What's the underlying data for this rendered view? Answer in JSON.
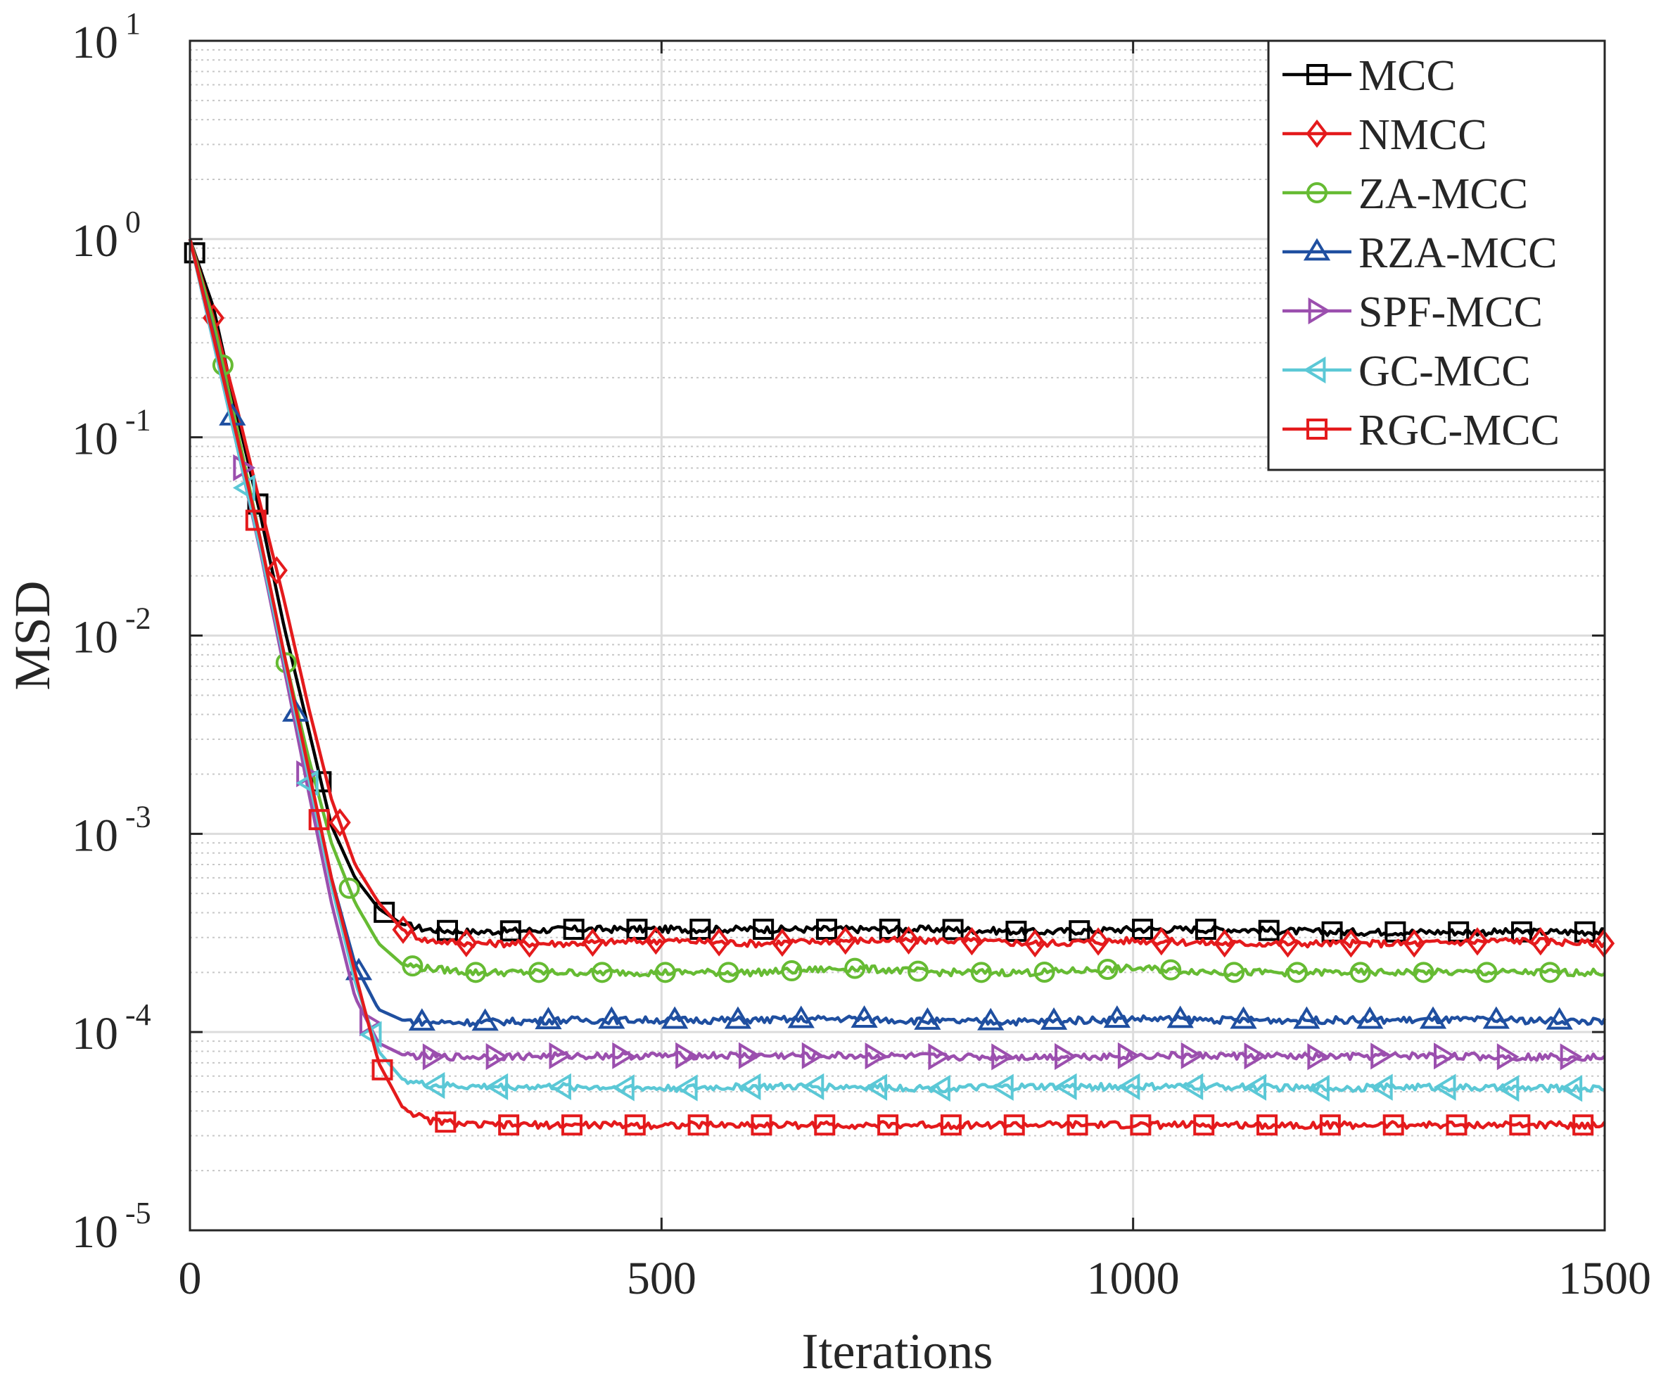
{
  "chart_data": {
    "type": "line",
    "title": "",
    "xlabel": "Iterations",
    "ylabel": "MSD",
    "xscale": "linear",
    "yscale": "log",
    "xlim": [
      0,
      1500
    ],
    "ylim": [
      1e-05,
      10
    ],
    "grid": true,
    "legend_position": "top-right",
    "x_ticks": [
      {
        "value": 0,
        "label": "0"
      },
      {
        "value": 500,
        "label": "500"
      },
      {
        "value": 1000,
        "label": "1000"
      },
      {
        "value": 1500,
        "label": "1500"
      }
    ],
    "y_ticks": [
      {
        "value": 1e-05,
        "base": "10",
        "exp": "-5"
      },
      {
        "value": 0.0001,
        "base": "10",
        "exp": "-4"
      },
      {
        "value": 0.001,
        "base": "10",
        "exp": "-3"
      },
      {
        "value": 0.01,
        "base": "10",
        "exp": "-2"
      },
      {
        "value": 0.1,
        "base": "10",
        "exp": "-1"
      },
      {
        "value": 1,
        "base": "10",
        "exp": "0"
      },
      {
        "value": 10,
        "base": "10",
        "exp": "1"
      }
    ],
    "series": [
      {
        "name": "MCC",
        "color": "#000000",
        "marker": "square",
        "marker_offset": 5,
        "x": [
          0,
          25,
          50,
          75,
          100,
          125,
          150,
          175,
          200,
          225,
          250,
          300,
          400,
          500,
          600,
          700,
          800,
          900,
          1000,
          1100,
          1200,
          1300,
          1400,
          1500
        ],
        "y": [
          1.0,
          0.45,
          0.13,
          0.04,
          0.011,
          0.0035,
          0.0011,
          0.0006,
          0.00042,
          0.00035,
          0.00033,
          0.00032,
          0.00033,
          0.00033,
          0.00033,
          0.00033,
          0.00033,
          0.00032,
          0.00033,
          0.00033,
          0.00032,
          0.00032,
          0.00032,
          0.00032
        ]
      },
      {
        "name": "NMCC",
        "color": "#e41a1c",
        "marker": "diamond",
        "marker_offset": 25,
        "x": [
          0,
          25,
          50,
          75,
          100,
          125,
          150,
          175,
          200,
          225,
          250,
          300,
          400,
          500,
          600,
          700,
          800,
          900,
          1000,
          1100,
          1200,
          1300,
          1400,
          1500
        ],
        "y": [
          1.0,
          0.4,
          0.14,
          0.045,
          0.015,
          0.0045,
          0.0015,
          0.0007,
          0.00045,
          0.00033,
          0.00029,
          0.00028,
          0.00028,
          0.00029,
          0.00028,
          0.00029,
          0.00029,
          0.00028,
          0.00029,
          0.00028,
          0.00028,
          0.00028,
          0.00029,
          0.00028
        ]
      },
      {
        "name": "ZA-MCC",
        "color": "#66bb33",
        "marker": "circle",
        "marker_offset": 35,
        "x": [
          0,
          25,
          50,
          75,
          100,
          125,
          150,
          175,
          200,
          225,
          250,
          300,
          400,
          500,
          600,
          700,
          800,
          900,
          1000,
          1100,
          1200,
          1300,
          1400,
          1500
        ],
        "y": [
          1.0,
          0.38,
          0.11,
          0.03,
          0.008,
          0.0025,
          0.0009,
          0.00045,
          0.00028,
          0.00022,
          0.00021,
          0.0002,
          0.0002,
          0.0002,
          0.0002,
          0.00021,
          0.0002,
          0.0002,
          0.00021,
          0.0002,
          0.0002,
          0.0002,
          0.0002,
          0.0002
        ]
      },
      {
        "name": "RZA-MCC",
        "color": "#1f4fa0",
        "marker": "triangle-up",
        "marker_offset": 45,
        "x": [
          0,
          25,
          50,
          75,
          100,
          125,
          150,
          175,
          200,
          225,
          250,
          300,
          400,
          500,
          600,
          700,
          800,
          900,
          1000,
          1100,
          1200,
          1300,
          1400,
          1500
        ],
        "y": [
          1.0,
          0.33,
          0.1,
          0.028,
          0.0075,
          0.0021,
          0.0006,
          0.00022,
          0.00013,
          0.000115,
          0.000112,
          0.000112,
          0.000115,
          0.000115,
          0.000115,
          0.000117,
          0.000113,
          0.000113,
          0.000117,
          0.000115,
          0.000115,
          0.000115,
          0.000115,
          0.000113
        ]
      },
      {
        "name": "SPF-MCC",
        "color": "#9b4fae",
        "marker": "triangle-right",
        "marker_offset": 55,
        "x": [
          0,
          25,
          50,
          75,
          100,
          125,
          150,
          175,
          200,
          225,
          250,
          300,
          400,
          500,
          600,
          700,
          800,
          900,
          1000,
          1100,
          1200,
          1300,
          1400,
          1500
        ],
        "y": [
          1.0,
          0.3,
          0.09,
          0.026,
          0.0068,
          0.0017,
          0.00045,
          0.00015,
          8.8e-05,
          7.7e-05,
          7.5e-05,
          7.5e-05,
          7.6e-05,
          7.6e-05,
          7.6e-05,
          7.6e-05,
          7.5e-05,
          7.5e-05,
          7.6e-05,
          7.6e-05,
          7.5e-05,
          7.6e-05,
          7.5e-05,
          7.5e-05
        ]
      },
      {
        "name": "GC-MCC",
        "color": "#5bc8d6",
        "marker": "triangle-left",
        "marker_offset": 60,
        "x": [
          0,
          25,
          50,
          75,
          100,
          125,
          150,
          175,
          200,
          225,
          250,
          300,
          400,
          500,
          600,
          700,
          800,
          900,
          1000,
          1100,
          1200,
          1300,
          1400,
          1500
        ],
        "y": [
          1.0,
          0.3,
          0.09,
          0.027,
          0.0075,
          0.002,
          0.00055,
          0.00018,
          8e-05,
          5.8e-05,
          5.4e-05,
          5.3e-05,
          5.3e-05,
          5.2e-05,
          5.3e-05,
          5.3e-05,
          5.2e-05,
          5.3e-05,
          5.3e-05,
          5.3e-05,
          5.2e-05,
          5.3e-05,
          5.2e-05,
          5.2e-05
        ]
      },
      {
        "name": "RGC-MCC",
        "color": "#e41a1c",
        "marker": "square",
        "marker_offset": 70,
        "x": [
          0,
          25,
          50,
          75,
          100,
          125,
          150,
          175,
          200,
          225,
          250,
          300,
          400,
          500,
          600,
          700,
          800,
          900,
          1000,
          1100,
          1200,
          1300,
          1400,
          1500
        ],
        "y": [
          1.0,
          0.32,
          0.1,
          0.03,
          0.008,
          0.0022,
          0.0006,
          0.0002,
          7e-05,
          4.2e-05,
          3.6e-05,
          3.4e-05,
          3.4e-05,
          3.4e-05,
          3.4e-05,
          3.4e-05,
          3.4e-05,
          3.4e-05,
          3.4e-05,
          3.4e-05,
          3.4e-05,
          3.4e-05,
          3.4e-05,
          3.4e-05
        ]
      }
    ]
  }
}
